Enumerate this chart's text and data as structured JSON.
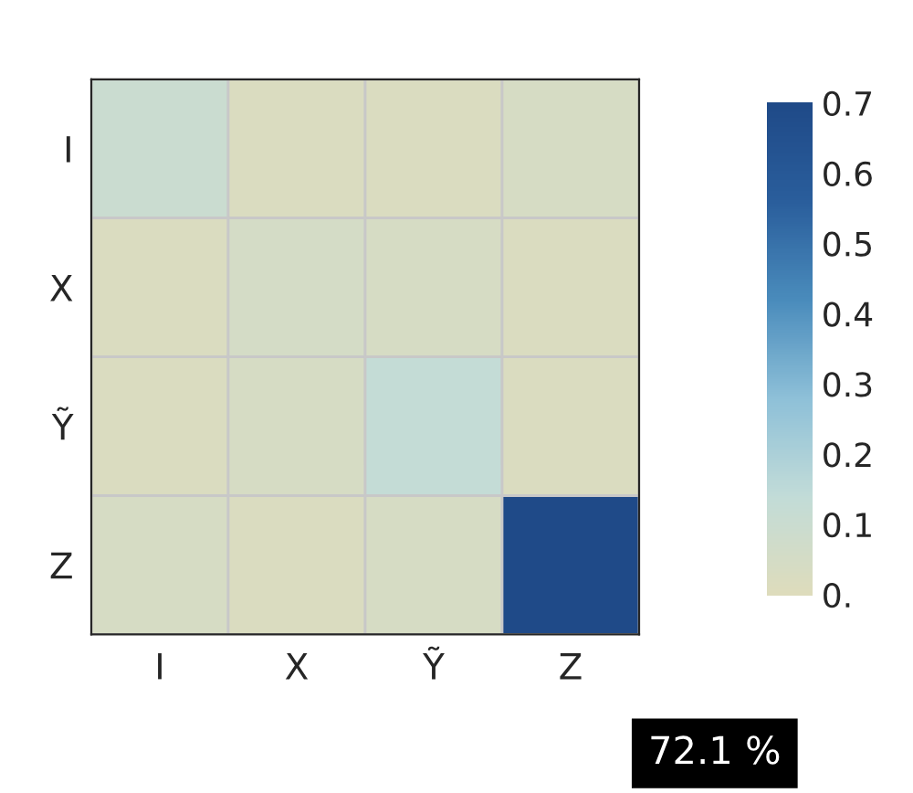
{
  "chart_data": {
    "type": "heatmap",
    "categories": [
      "I",
      "X",
      "Ỹ",
      "Z"
    ],
    "y_categories": [
      "I",
      "X",
      "Ỹ",
      "Z"
    ],
    "cells": [
      [
        0.1,
        0.02,
        0.02,
        0.04
      ],
      [
        0.02,
        0.05,
        0.04,
        0.02
      ],
      [
        0.02,
        0.04,
        0.13,
        0.02
      ],
      [
        0.04,
        0.02,
        0.04,
        0.72
      ]
    ],
    "clim": [
      0,
      0.7
    ],
    "cticks": [
      {
        "value": 0,
        "label": "0."
      },
      0.1,
      0.2,
      0.3,
      0.4,
      0.5,
      0.6,
      0.7
    ],
    "annotations": [
      "72.1 %"
    ]
  }
}
